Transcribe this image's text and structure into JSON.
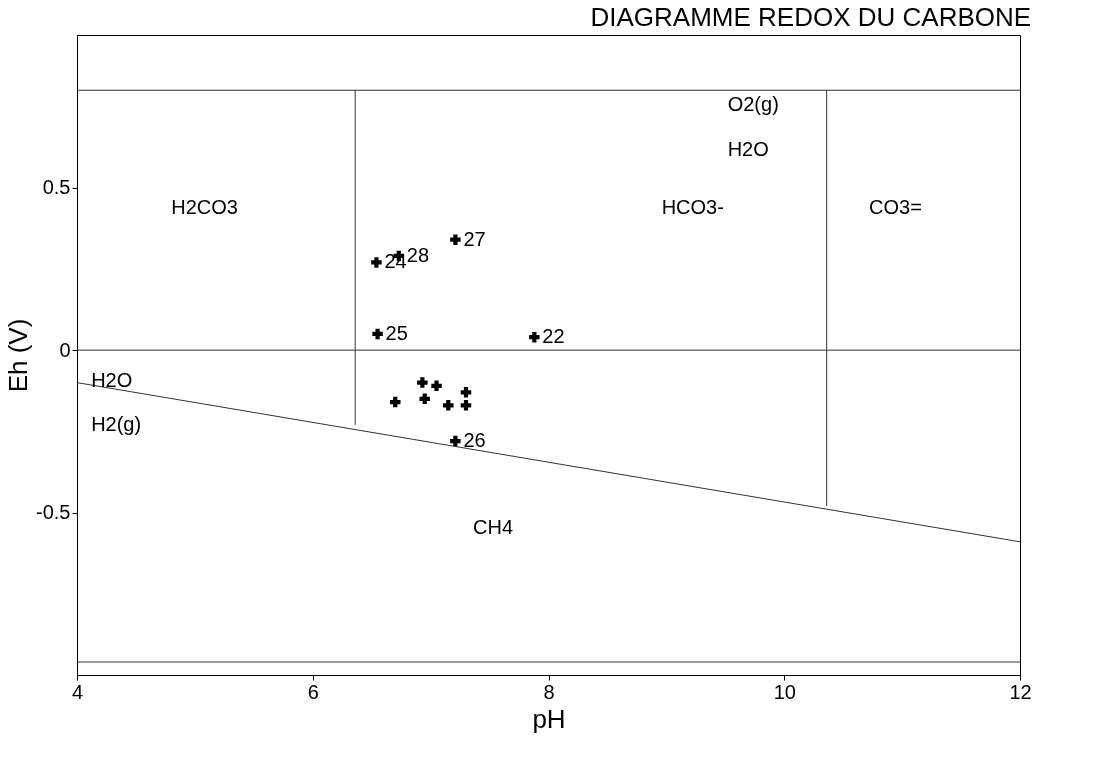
{
  "chart_data": {
    "type": "scatter",
    "title": "DIAGRAMME REDOX DU CARBONE",
    "xlabel": "pH",
    "ylabel": "Eh (V)",
    "xlim": [
      4,
      12
    ],
    "ylim": [
      -1.0,
      0.97
    ],
    "xticks": [
      4,
      6,
      8,
      10,
      12
    ],
    "yticks": [
      -0.5,
      0,
      0.5
    ],
    "grid": false,
    "marker": "cross",
    "series": [
      {
        "color": "#000000",
        "x": [
          7.21,
          6.73,
          6.54,
          6.55,
          7.88,
          7.21,
          6.93,
          7.05,
          6.7,
          6.95,
          7.15,
          7.3,
          7.3
        ],
        "values": [
          0.34,
          0.29,
          0.27,
          0.05,
          0.04,
          -0.28,
          -0.1,
          -0.11,
          -0.16,
          -0.15,
          -0.17,
          -0.17,
          -0.13
        ]
      },
      {
        "type": "line",
        "marker": "none",
        "color": "#333333",
        "x": [
          4,
          12
        ],
        "values": [
          -0.1,
          -0.59
        ]
      },
      {
        "type": "line",
        "marker": "none",
        "color": "#333333",
        "x": [
          6.36,
          6.36
        ],
        "values": [
          0.8,
          -0.23
        ]
      },
      {
        "type": "line",
        "marker": "none",
        "color": "#333333",
        "x": [
          10.36,
          10.36
        ],
        "values": [
          0.8,
          -0.48
        ]
      }
    ],
    "ref_lines": [
      {
        "axis": "y",
        "value": 0.8,
        "color": "#333333"
      },
      {
        "axis": "y",
        "value": 0,
        "color": "#333333"
      },
      {
        "axis": "y",
        "value": -0.96,
        "color": "#333333"
      }
    ],
    "annotations": [
      {
        "text": "27",
        "x": 7.21,
        "y": 0.34
      },
      {
        "text": "28",
        "x": 6.73,
        "y": 0.29
      },
      {
        "text": "24",
        "x": 6.54,
        "y": 0.27
      },
      {
        "text": "25",
        "x": 6.55,
        "y": 0.05
      },
      {
        "text": "22",
        "x": 7.88,
        "y": 0.04
      },
      {
        "text": "26",
        "x": 7.21,
        "y": -0.28
      },
      "H2CO3",
      "HCO3-",
      "CO3=",
      "O2(g)",
      "H2O",
      "H2O",
      "H2(g)",
      "CH4"
    ]
  }
}
